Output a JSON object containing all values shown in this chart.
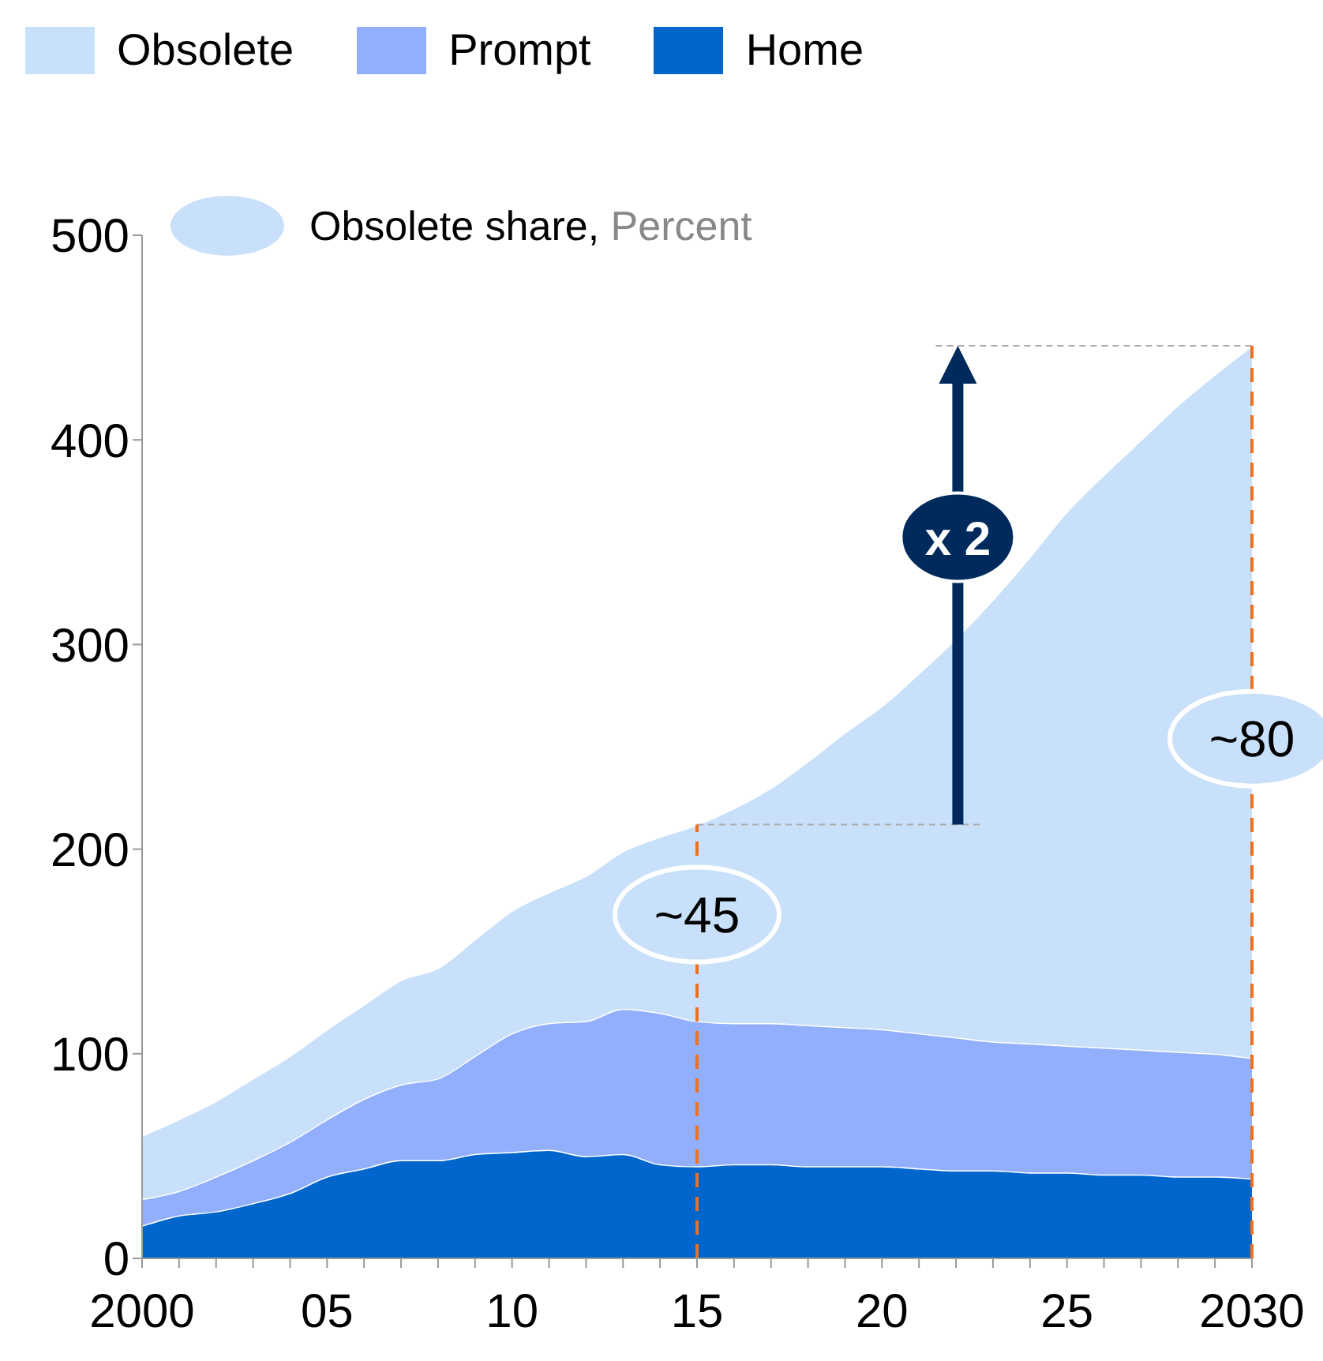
{
  "chart_data": {
    "type": "area",
    "stacked": true,
    "legend": "top left",
    "x": [
      2000,
      2001,
      2002,
      2003,
      2004,
      2005,
      2006,
      2007,
      2008,
      2009,
      2010,
      2011,
      2012,
      2013,
      2014,
      2015,
      2016,
      2017,
      2018,
      2019,
      2020,
      2021,
      2022,
      2023,
      2024,
      2025,
      2026,
      2027,
      2028,
      2029,
      2030
    ],
    "series": [
      {
        "name": "Home",
        "color": "#0066cc",
        "values": [
          16,
          21,
          23,
          27,
          32,
          40,
          44,
          48,
          48,
          51,
          52,
          53,
          50,
          51,
          46,
          45,
          46,
          46,
          45,
          45,
          45,
          44,
          43,
          43,
          42,
          42,
          41,
          41,
          40,
          40,
          39
        ]
      },
      {
        "name": "Prompt",
        "color": "#91affc",
        "values": [
          13,
          12,
          17,
          21,
          25,
          28,
          34,
          37,
          40,
          48,
          58,
          62,
          66,
          71,
          74,
          71,
          69,
          69,
          69,
          68,
          67,
          66,
          65,
          63,
          63,
          62,
          62,
          61,
          61,
          60,
          59
        ]
      },
      {
        "name": "Obsolete",
        "color": "#c8e0fa",
        "values": [
          31,
          35,
          37,
          40,
          42,
          44,
          46,
          51,
          54,
          57,
          60,
          64,
          71,
          77,
          86,
          96,
          105,
          115,
          129,
          144,
          158,
          176,
          195,
          216,
          238,
          261,
          280,
          298,
          316,
          332,
          348
        ]
      }
    ],
    "xlim": [
      2000,
      2030
    ],
    "xticks": [
      {
        "value": 2000,
        "label": "2000"
      },
      {
        "value": 2001,
        "label": null
      },
      {
        "value": 2002,
        "label": null
      },
      {
        "value": 2003,
        "label": null
      },
      {
        "value": 2004,
        "label": null
      },
      {
        "value": 2005,
        "label": "05"
      },
      {
        "value": 2006,
        "label": null
      },
      {
        "value": 2007,
        "label": null
      },
      {
        "value": 2008,
        "label": null
      },
      {
        "value": 2009,
        "label": null
      },
      {
        "value": 2010,
        "label": "10"
      },
      {
        "value": 2011,
        "label": null
      },
      {
        "value": 2012,
        "label": null
      },
      {
        "value": 2013,
        "label": null
      },
      {
        "value": 2014,
        "label": null
      },
      {
        "value": 2015,
        "label": "15"
      },
      {
        "value": 2016,
        "label": null
      },
      {
        "value": 2017,
        "label": null
      },
      {
        "value": 2018,
        "label": null
      },
      {
        "value": 2019,
        "label": null
      },
      {
        "value": 2020,
        "label": "20"
      },
      {
        "value": 2021,
        "label": null
      },
      {
        "value": 2022,
        "label": null
      },
      {
        "value": 2023,
        "label": null
      },
      {
        "value": 2024,
        "label": null
      },
      {
        "value": 2025,
        "label": "25"
      },
      {
        "value": 2026,
        "label": null
      },
      {
        "value": 2027,
        "label": null
      },
      {
        "value": 2028,
        "label": null
      },
      {
        "value": 2029,
        "label": null
      },
      {
        "value": 2030,
        "label": "2030"
      }
    ],
    "ylim": [
      0,
      500
    ],
    "yticks": [
      0,
      100,
      200,
      300,
      400,
      500
    ],
    "ref_lines": [
      {
        "axis": "x",
        "value": 2015,
        "color": "#f07020",
        "line_style": "dashed"
      },
      {
        "axis": "x",
        "value": 2030,
        "color": "#f07020",
        "line_style": "dashed"
      }
    ],
    "annotations": [
      "Obsolete share, Percent",
      {
        "text": "~45",
        "x": 2015,
        "y": 168
      },
      {
        "text": "~80",
        "x": 2030,
        "y": 254
      },
      "x 2"
    ]
  }
}
